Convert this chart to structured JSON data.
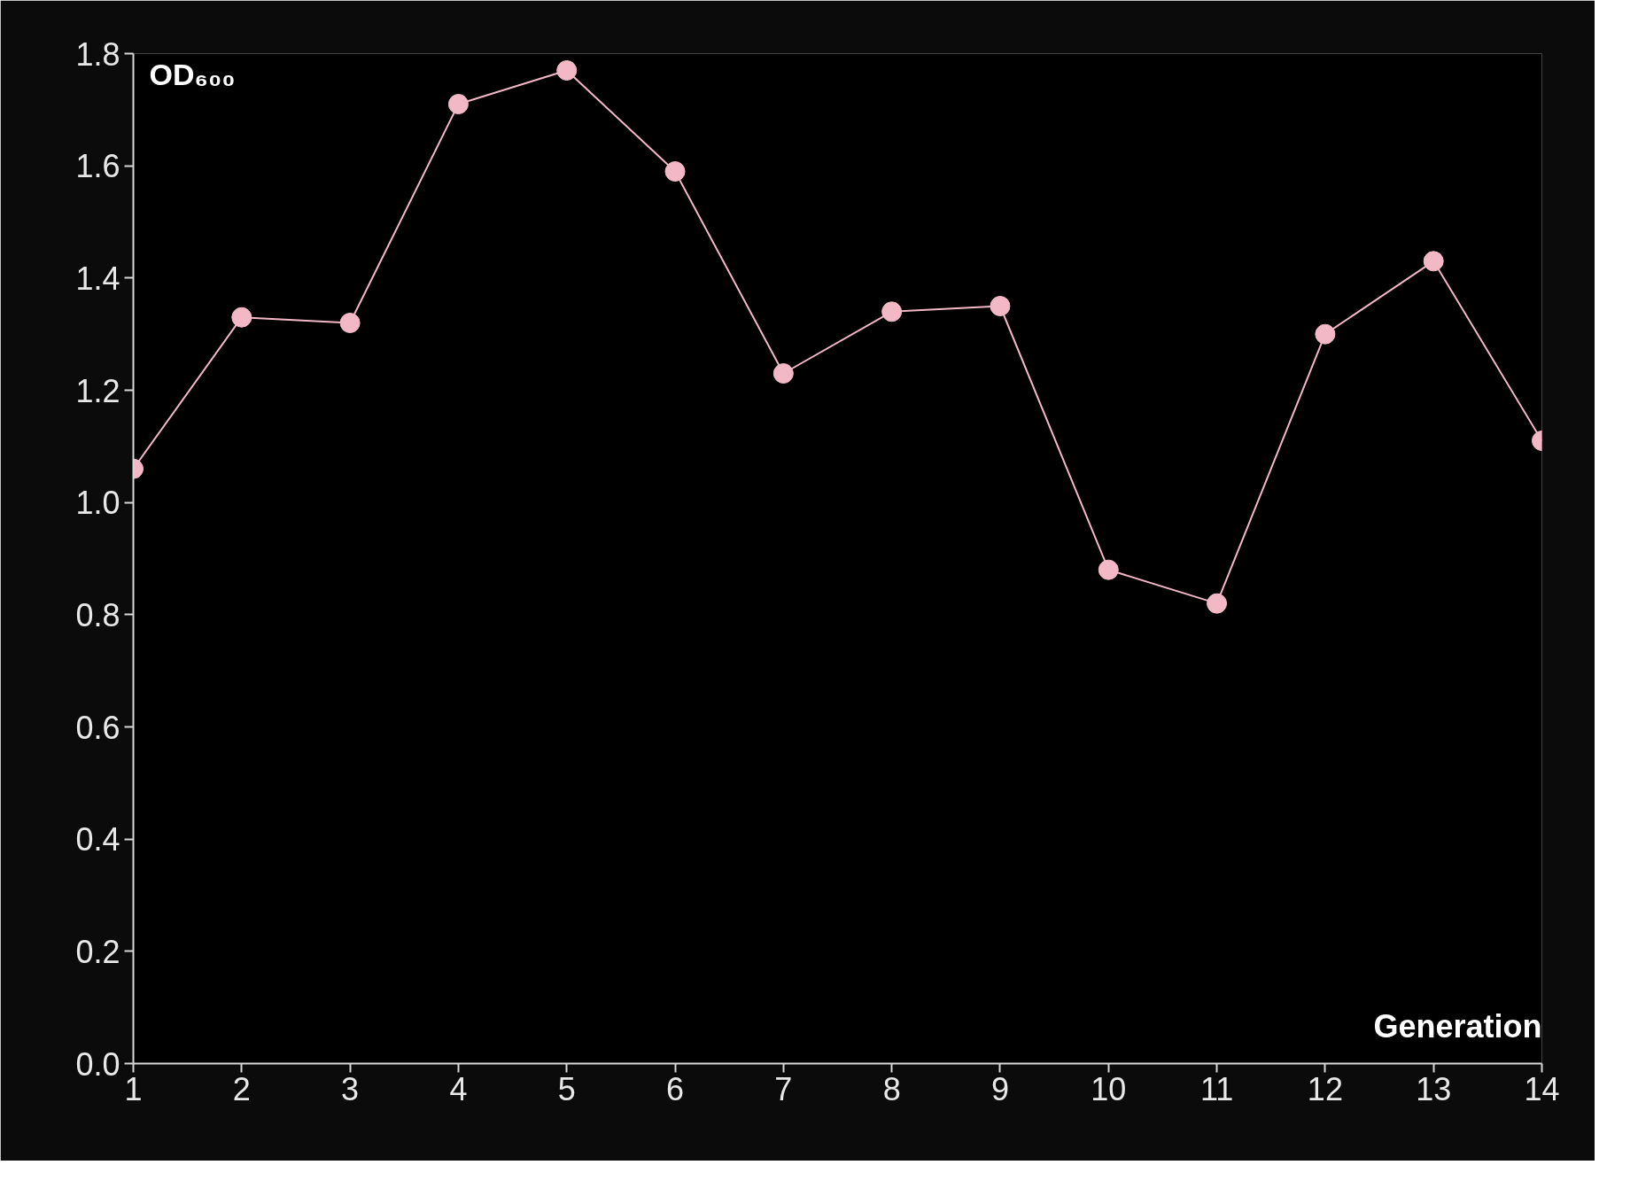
{
  "chart_data": {
    "type": "line",
    "xlabel": "Generation",
    "ylabel": "OD₆₀₀",
    "x": [
      1,
      2,
      3,
      4,
      5,
      6,
      7,
      8,
      9,
      10,
      11,
      12,
      13,
      14
    ],
    "series": [
      {
        "color": "#f2b8c6",
        "values": [
          1.06,
          1.33,
          1.32,
          1.71,
          1.77,
          1.59,
          1.23,
          1.34,
          1.35,
          0.88,
          0.82,
          1.3,
          1.43,
          1.11
        ]
      }
    ],
    "xlim": [
      1,
      14
    ],
    "ylim": [
      0,
      1.8
    ],
    "xticks": [
      1,
      2,
      3,
      4,
      5,
      6,
      7,
      8,
      9,
      10,
      11,
      12,
      13,
      14
    ],
    "yticks": [
      {
        "value": 0,
        "label": "0.0"
      },
      0.2,
      0.4,
      0.6,
      0.8,
      {
        "value": 1,
        "label": "1.0"
      },
      1.2,
      1.4,
      1.6,
      1.8
    ],
    "marker": "circle",
    "grid": false
  }
}
